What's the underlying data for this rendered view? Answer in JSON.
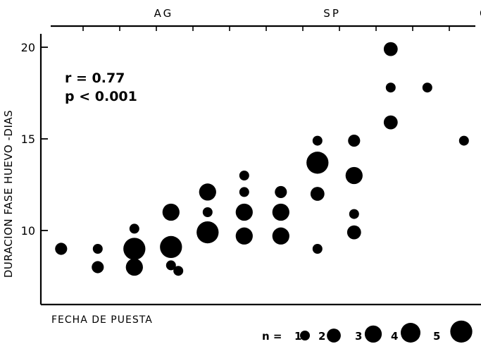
{
  "chart_data": {
    "type": "scatter",
    "xlabel": "FECHA DE PUESTA",
    "ylabel": "DURACION  FASE HUEVO  -DIAS",
    "top_axis_labels": [
      {
        "label": "AG",
        "x": 3.7
      },
      {
        "label": "SP",
        "x": 8.3
      },
      {
        "label": "OC",
        "x": 12.6
      }
    ],
    "top_axis_ticks": [
      1.5,
      2.5,
      3.5,
      4.5,
      5.5,
      6.5,
      7.5,
      8.5,
      9.5,
      10.5,
      11.5,
      12.5,
      13.5
    ],
    "yticks": [
      10,
      15,
      20
    ],
    "xlim": [
      0,
      14
    ],
    "ylim": [
      6,
      21.5
    ],
    "annotations": [
      "r = 0.77",
      "p < 0.001"
    ],
    "size_legend": {
      "prefix": "n =",
      "entries": [
        {
          "label": "1",
          "n": 1
        },
        {
          "label": "2",
          "n": 2
        },
        {
          "label": "3",
          "n": 3
        },
        {
          "label": "4",
          "n": 4
        },
        {
          "label": "5",
          "n": 5
        }
      ]
    },
    "points": [
      {
        "x": 0.9,
        "y": 9.0,
        "n": 1.5
      },
      {
        "x": 1.9,
        "y": 8.0,
        "n": 1.5
      },
      {
        "x": 1.9,
        "y": 9.0,
        "n": 1
      },
      {
        "x": 2.9,
        "y": 8.0,
        "n": 3
      },
      {
        "x": 2.9,
        "y": 9.0,
        "n": 5
      },
      {
        "x": 2.9,
        "y": 10.1,
        "n": 1
      },
      {
        "x": 3.9,
        "y": 8.1,
        "n": 1
      },
      {
        "x": 3.9,
        "y": 9.1,
        "n": 5
      },
      {
        "x": 3.9,
        "y": 11.0,
        "n": 3
      },
      {
        "x": 4.1,
        "y": 7.8,
        "n": 1
      },
      {
        "x": 4.9,
        "y": 9.9,
        "n": 5
      },
      {
        "x": 4.9,
        "y": 11.0,
        "n": 1
      },
      {
        "x": 4.9,
        "y": 12.1,
        "n": 3
      },
      {
        "x": 5.9,
        "y": 9.7,
        "n": 3
      },
      {
        "x": 5.9,
        "y": 11.0,
        "n": 3
      },
      {
        "x": 5.9,
        "y": 12.1,
        "n": 1
      },
      {
        "x": 5.9,
        "y": 13.0,
        "n": 1
      },
      {
        "x": 6.9,
        "y": 9.7,
        "n": 3
      },
      {
        "x": 6.9,
        "y": 11.0,
        "n": 3
      },
      {
        "x": 6.9,
        "y": 12.1,
        "n": 1.5
      },
      {
        "x": 7.9,
        "y": 9.0,
        "n": 1
      },
      {
        "x": 7.9,
        "y": 12.0,
        "n": 2
      },
      {
        "x": 7.9,
        "y": 13.7,
        "n": 5
      },
      {
        "x": 7.9,
        "y": 14.9,
        "n": 1
      },
      {
        "x": 8.9,
        "y": 9.9,
        "n": 2
      },
      {
        "x": 8.9,
        "y": 10.9,
        "n": 1
      },
      {
        "x": 8.9,
        "y": 13.0,
        "n": 3
      },
      {
        "x": 8.9,
        "y": 14.9,
        "n": 1.5
      },
      {
        "x": 9.9,
        "y": 15.9,
        "n": 2
      },
      {
        "x": 9.9,
        "y": 17.8,
        "n": 1
      },
      {
        "x": 9.9,
        "y": 19.9,
        "n": 2
      },
      {
        "x": 10.9,
        "y": 17.8,
        "n": 1
      },
      {
        "x": 11.9,
        "y": 14.9,
        "n": 1
      }
    ]
  }
}
